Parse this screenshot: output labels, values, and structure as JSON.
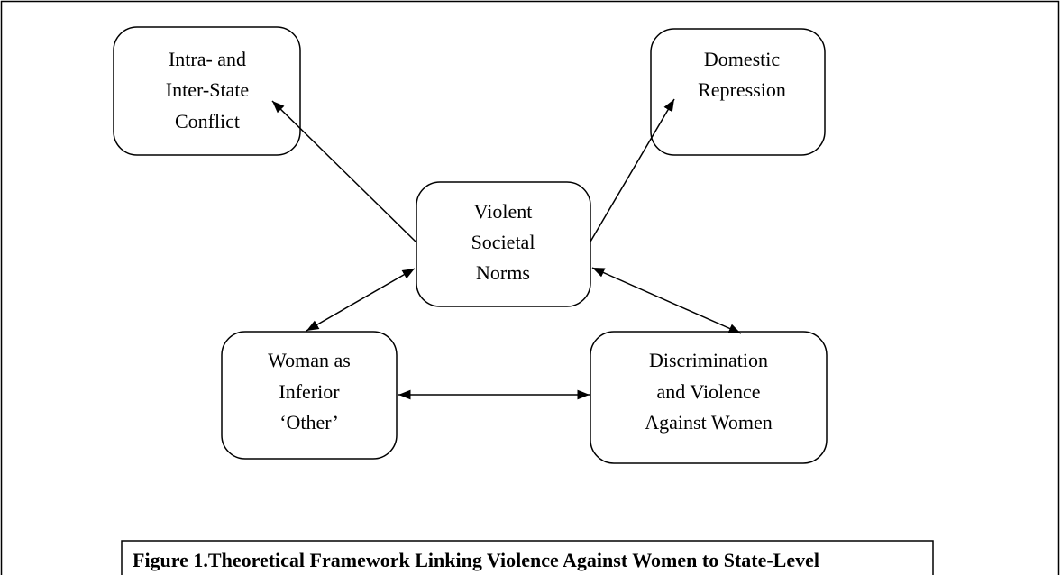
{
  "nodes": [
    {
      "lines": [
        "Intra- and",
        "Inter-State",
        "Conflict"
      ]
    },
    {
      "lines": [
        "Domestic",
        "Repression"
      ]
    },
    {
      "lines": [
        "Violent",
        "Societal",
        "Norms"
      ]
    },
    {
      "lines": [
        "Woman as",
        "Inferior",
        "‘Other’"
      ]
    },
    {
      "lines": [
        "Discrimination",
        "and Violence",
        "Against Women"
      ]
    }
  ],
  "caption": "Figure 1.Theoretical Framework Linking Violence Against Women to State-Level"
}
